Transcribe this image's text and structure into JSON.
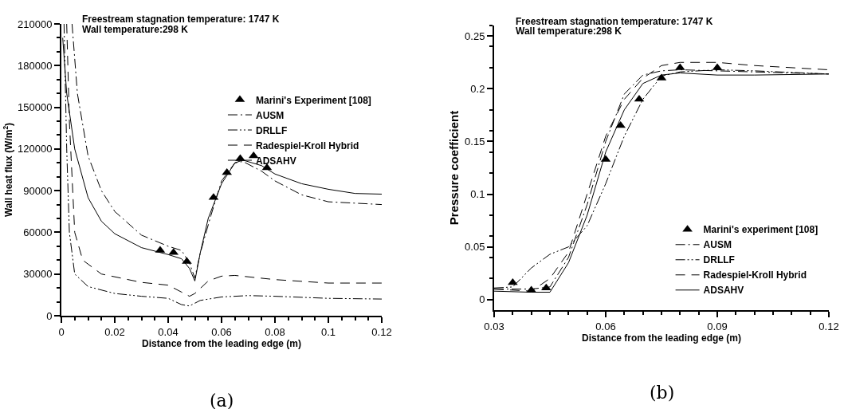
{
  "chart_data": [
    {
      "type": "line",
      "xlabel": "Distance from the leading edge (m)",
      "ylabel": "Wall heat flux (W/m$^{2}$)",
      "annotations": [
        "Freestream stagnation temperature: 1747 K",
        "Wall temperature:298 K",
        "(a)"
      ],
      "xlim": [
        0,
        0.12
      ],
      "ylim": [
        0,
        210000
      ],
      "xticks": [
        0,
        0.02,
        0.04,
        0.06,
        0.08,
        0.1,
        0.12
      ],
      "yticks": [
        0,
        30000,
        60000,
        90000,
        120000,
        150000,
        180000,
        210000
      ],
      "grid": false,
      "legend": "right",
      "series": [
        {
          "name": "Marini's Experiment [108]",
          "type": "scatter",
          "marker": "triangle",
          "color": "#000000",
          "x": [
            0.037,
            0.042,
            0.047,
            0.057,
            0.062,
            0.067,
            0.072,
            0.077
          ],
          "values": [
            47000,
            45500,
            39000,
            85000,
            103000,
            113000,
            115000,
            106500
          ]
        },
        {
          "name": "AUSM",
          "line_style": "dashdot",
          "color": "#000000",
          "x": [
            0.004,
            0.006,
            0.01,
            0.015,
            0.02,
            0.03,
            0.04,
            0.045,
            0.048,
            0.05,
            0.052,
            0.056,
            0.06,
            0.065,
            0.068,
            0.075,
            0.08,
            0.09,
            0.1,
            0.12
          ],
          "values": [
            210000,
            160000,
            115000,
            90000,
            75000,
            58000,
            50000,
            47000,
            38000,
            27000,
            45000,
            72000,
            97000,
            110000,
            111000,
            104000,
            97000,
            87000,
            82000,
            80000
          ]
        },
        {
          "name": "DRLLF",
          "line_style": "dashdotdot",
          "color": "#000000",
          "x": [
            0.001,
            0.002,
            0.003,
            0.005,
            0.01,
            0.02,
            0.03,
            0.04,
            0.045,
            0.048,
            0.05,
            0.052,
            0.06,
            0.07,
            0.08,
            0.1,
            0.12
          ],
          "values": [
            210000,
            120000,
            60000,
            30000,
            21000,
            16000,
            14000,
            12500,
            8000,
            7000,
            9000,
            11000,
            13500,
            14500,
            14000,
            12500,
            12000
          ]
        },
        {
          "name": "Radespiel-Kroll Hybrid",
          "line_style": "dashed",
          "color": "#000000",
          "x": [
            0.002,
            0.003,
            0.005,
            0.008,
            0.015,
            0.03,
            0.04,
            0.045,
            0.048,
            0.05,
            0.055,
            0.06,
            0.065,
            0.08,
            0.1,
            0.12
          ],
          "values": [
            210000,
            140000,
            60000,
            40000,
            30000,
            24000,
            22000,
            17000,
            14000,
            16000,
            25000,
            28500,
            29000,
            26000,
            23500,
            23500
          ]
        },
        {
          "name": "ADSAHV",
          "line_style": "solid",
          "color": "#000000",
          "x": [
            0.0005,
            0.002,
            0.005,
            0.01,
            0.015,
            0.02,
            0.03,
            0.04,
            0.045,
            0.048,
            0.05,
            0.052,
            0.055,
            0.06,
            0.065,
            0.068,
            0.075,
            0.08,
            0.09,
            0.1,
            0.11,
            0.12
          ],
          "values": [
            200000,
            160000,
            120000,
            85000,
            68000,
            59000,
            49000,
            44000,
            41000,
            34000,
            25000,
            45000,
            70000,
            95000,
            110000,
            112000,
            108000,
            102000,
            95000,
            91000,
            88000,
            87500
          ]
        }
      ]
    },
    {
      "type": "line",
      "xlabel": "Distance from the leading edge (m)",
      "ylabel": "Pressure coefficient",
      "annotations": [
        "Freestream stagnation temperature: 1747 K",
        "Wall temperature:298 K",
        "(b)"
      ],
      "xlim": [
        0.03,
        0.12
      ],
      "ylim": [
        -0.01,
        0.26
      ],
      "xticks": [
        0.03,
        0.06,
        0.09,
        0.12
      ],
      "yticks": [
        0,
        0.05,
        0.1,
        0.15,
        0.2,
        0.25
      ],
      "grid": false,
      "legend": "bottom right",
      "series": [
        {
          "name": "Marini's experiment [108]",
          "type": "scatter",
          "marker": "triangle",
          "color": "#000000",
          "x": [
            0.035,
            0.04,
            0.044,
            0.06,
            0.064,
            0.069,
            0.075,
            0.08,
            0.09
          ],
          "values": [
            0.016,
            0.009,
            0.011,
            0.133,
            0.165,
            0.19,
            0.21,
            0.22,
            0.22
          ]
        },
        {
          "name": "AUSM",
          "line_style": "dashdot",
          "color": "#000000",
          "x": [
            0.03,
            0.04,
            0.045,
            0.05,
            0.055,
            0.06,
            0.065,
            0.07,
            0.075,
            0.08,
            0.1,
            0.12
          ],
          "values": [
            0.01,
            0.01,
            0.012,
            0.04,
            0.09,
            0.15,
            0.195,
            0.213,
            0.217,
            0.218,
            0.216,
            0.214
          ]
        },
        {
          "name": "DRLLF",
          "line_style": "dashdotdot",
          "color": "#000000",
          "x": [
            0.03,
            0.035,
            0.04,
            0.045,
            0.05,
            0.055,
            0.06,
            0.065,
            0.07,
            0.075,
            0.08,
            0.09,
            0.1,
            0.12
          ],
          "values": [
            0.011,
            0.012,
            0.03,
            0.043,
            0.05,
            0.07,
            0.11,
            0.155,
            0.19,
            0.212,
            0.216,
            0.218,
            0.217,
            0.214
          ]
        },
        {
          "name": "Radespiel-Kroll Hybrid",
          "line_style": "dashed",
          "color": "#000000",
          "x": [
            0.03,
            0.04,
            0.045,
            0.05,
            0.055,
            0.06,
            0.065,
            0.07,
            0.075,
            0.08,
            0.09,
            0.1,
            0.12
          ],
          "values": [
            0.01,
            0.008,
            0.02,
            0.045,
            0.1,
            0.155,
            0.19,
            0.21,
            0.222,
            0.225,
            0.225,
            0.222,
            0.218
          ]
        },
        {
          "name": "ADSAHV",
          "line_style": "solid",
          "color": "#000000",
          "x": [
            0.03,
            0.04,
            0.045,
            0.05,
            0.055,
            0.06,
            0.065,
            0.07,
            0.075,
            0.08,
            0.09,
            0.1,
            0.12
          ],
          "values": [
            0.008,
            0.007,
            0.007,
            0.035,
            0.08,
            0.14,
            0.18,
            0.205,
            0.213,
            0.215,
            0.213,
            0.213,
            0.214
          ]
        }
      ]
    }
  ]
}
